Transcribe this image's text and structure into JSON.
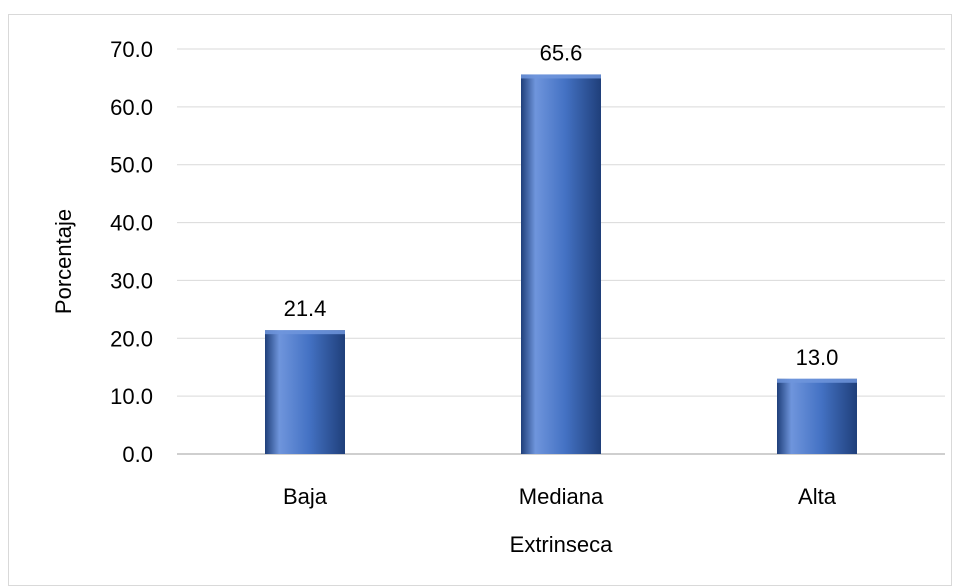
{
  "chart_data": {
    "type": "bar",
    "categories": [
      "Baja",
      "Mediana",
      "Alta"
    ],
    "values": [
      21.4,
      65.6,
      13.0
    ],
    "value_labels": [
      "21.4",
      "65.6",
      "13.0"
    ],
    "yticks": [
      0,
      10,
      20,
      30,
      40,
      50,
      60,
      70
    ],
    "ytick_labels": [
      "0.0",
      "10.0",
      "20.0",
      "30.0",
      "40.0",
      "50.0",
      "60.0",
      "70.0"
    ],
    "xlabel": "Extrinseca",
    "ylabel": "Porcentaje",
    "ylim": [
      0,
      70
    ],
    "grid": true,
    "legend": "none",
    "colors": {
      "bar_light": "#6f95dc",
      "bar": "#4472c4",
      "bar_dark": "#1f3f7a",
      "grid": "#d9d9d9",
      "axis": "#bfbfbf"
    }
  }
}
